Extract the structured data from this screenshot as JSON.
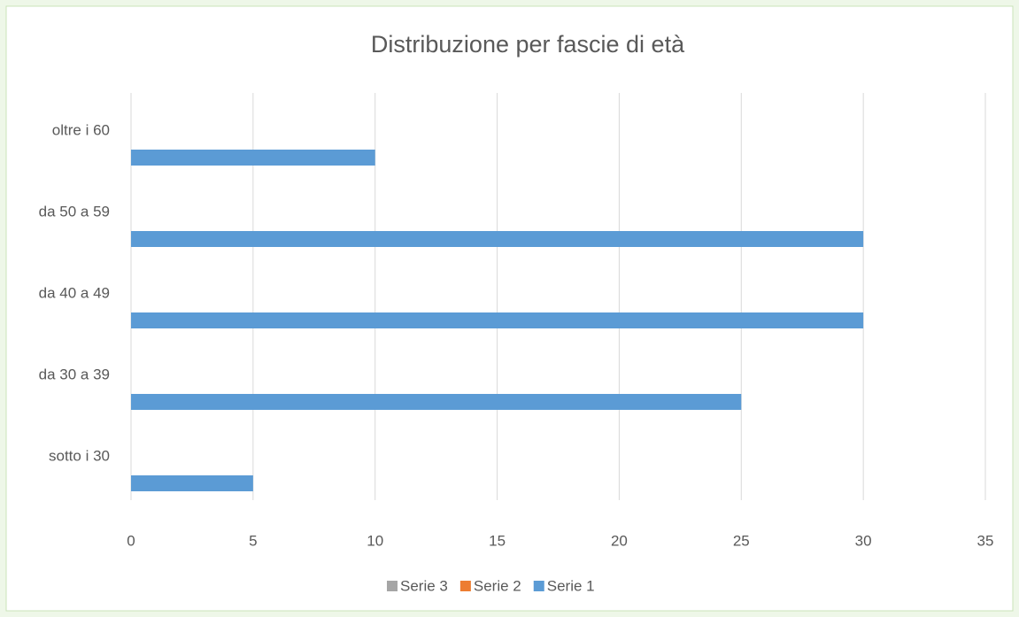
{
  "chart_data": {
    "type": "hbar",
    "title": "Distribuzione per fascie di età",
    "categories": [
      "sotto i 30",
      "da 30 a 39",
      "da 40 a 49",
      "da 50 a 59",
      "oltre i 60"
    ],
    "series": [
      {
        "name": "Serie 1",
        "color": "#5b9bd5",
        "values": [
          5,
          25,
          30,
          30,
          10
        ]
      },
      {
        "name": "Serie 2",
        "color": "#ed7d31",
        "values": [
          0,
          0,
          0,
          0,
          0
        ]
      },
      {
        "name": "Serie 3",
        "color": "#a5a5a5",
        "values": [
          0,
          0,
          0,
          0,
          0
        ]
      }
    ],
    "xlim": [
      0,
      35
    ],
    "xticks": [
      0,
      5,
      10,
      15,
      20,
      25,
      30,
      35
    ],
    "grid": true,
    "legend": "bottom"
  }
}
